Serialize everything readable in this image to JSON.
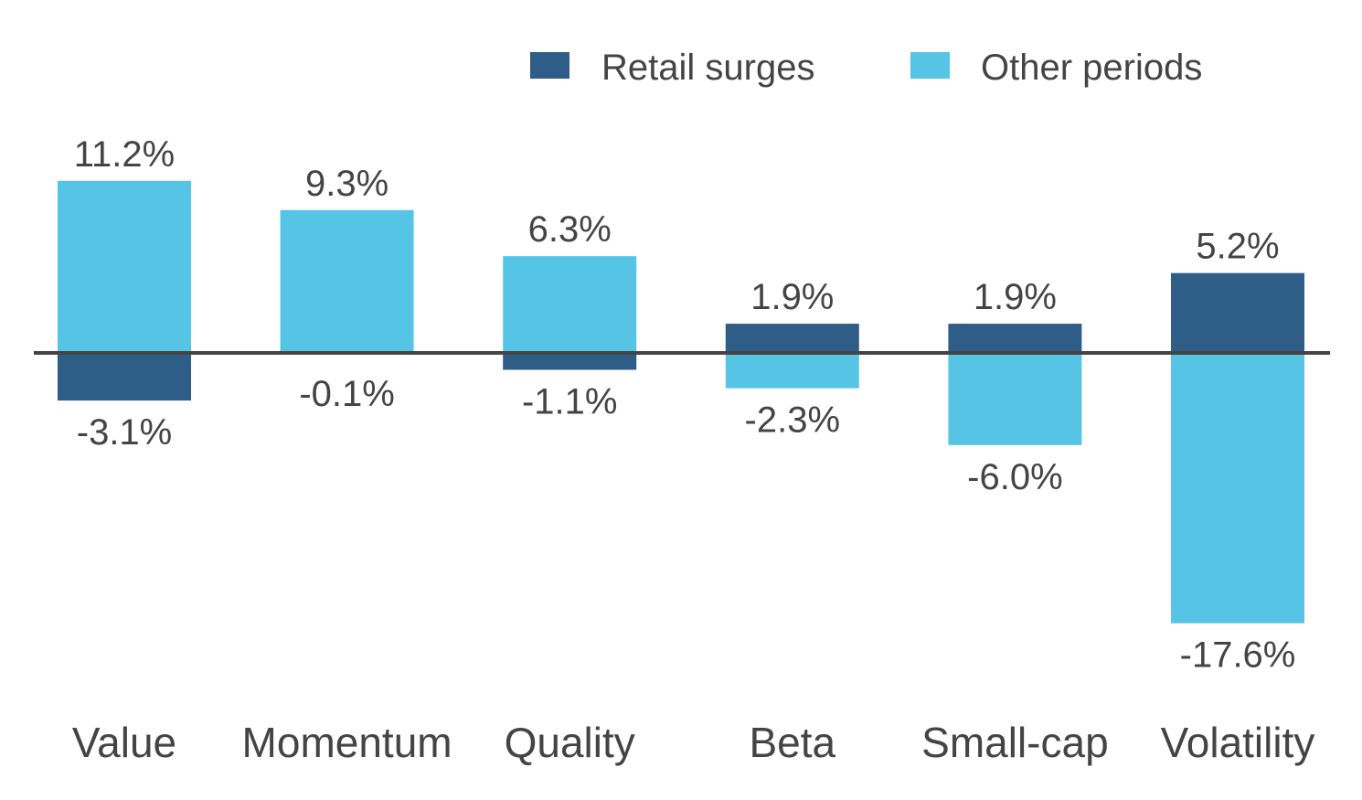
{
  "chart_data": {
    "type": "bar",
    "categories": [
      "Value",
      "Momentum",
      "Quality",
      "Beta",
      "Small-cap",
      "Volatility"
    ],
    "series": [
      {
        "name": "Retail surges",
        "color": "#2e5d87",
        "values": [
          -3.1,
          -0.1,
          -1.1,
          1.9,
          1.9,
          5.2
        ]
      },
      {
        "name": "Other periods",
        "color": "#56c4e5",
        "values": [
          11.2,
          9.3,
          6.3,
          -2.3,
          -6.0,
          -17.6
        ]
      }
    ],
    "value_labels": [
      {
        "top": "11.2%",
        "bottom": "-3.1%"
      },
      {
        "top": "9.3%",
        "bottom": "-0.1%"
      },
      {
        "top": "6.3%",
        "bottom": "-1.1%"
      },
      {
        "top": "1.9%",
        "bottom": "-2.3%"
      },
      {
        "top": "1.9%",
        "bottom": "-6.0%"
      },
      {
        "top": "5.2%",
        "bottom": "-17.6%"
      }
    ],
    "legend_position": "top-right",
    "grid": false,
    "zero_line_color": "#444444"
  }
}
